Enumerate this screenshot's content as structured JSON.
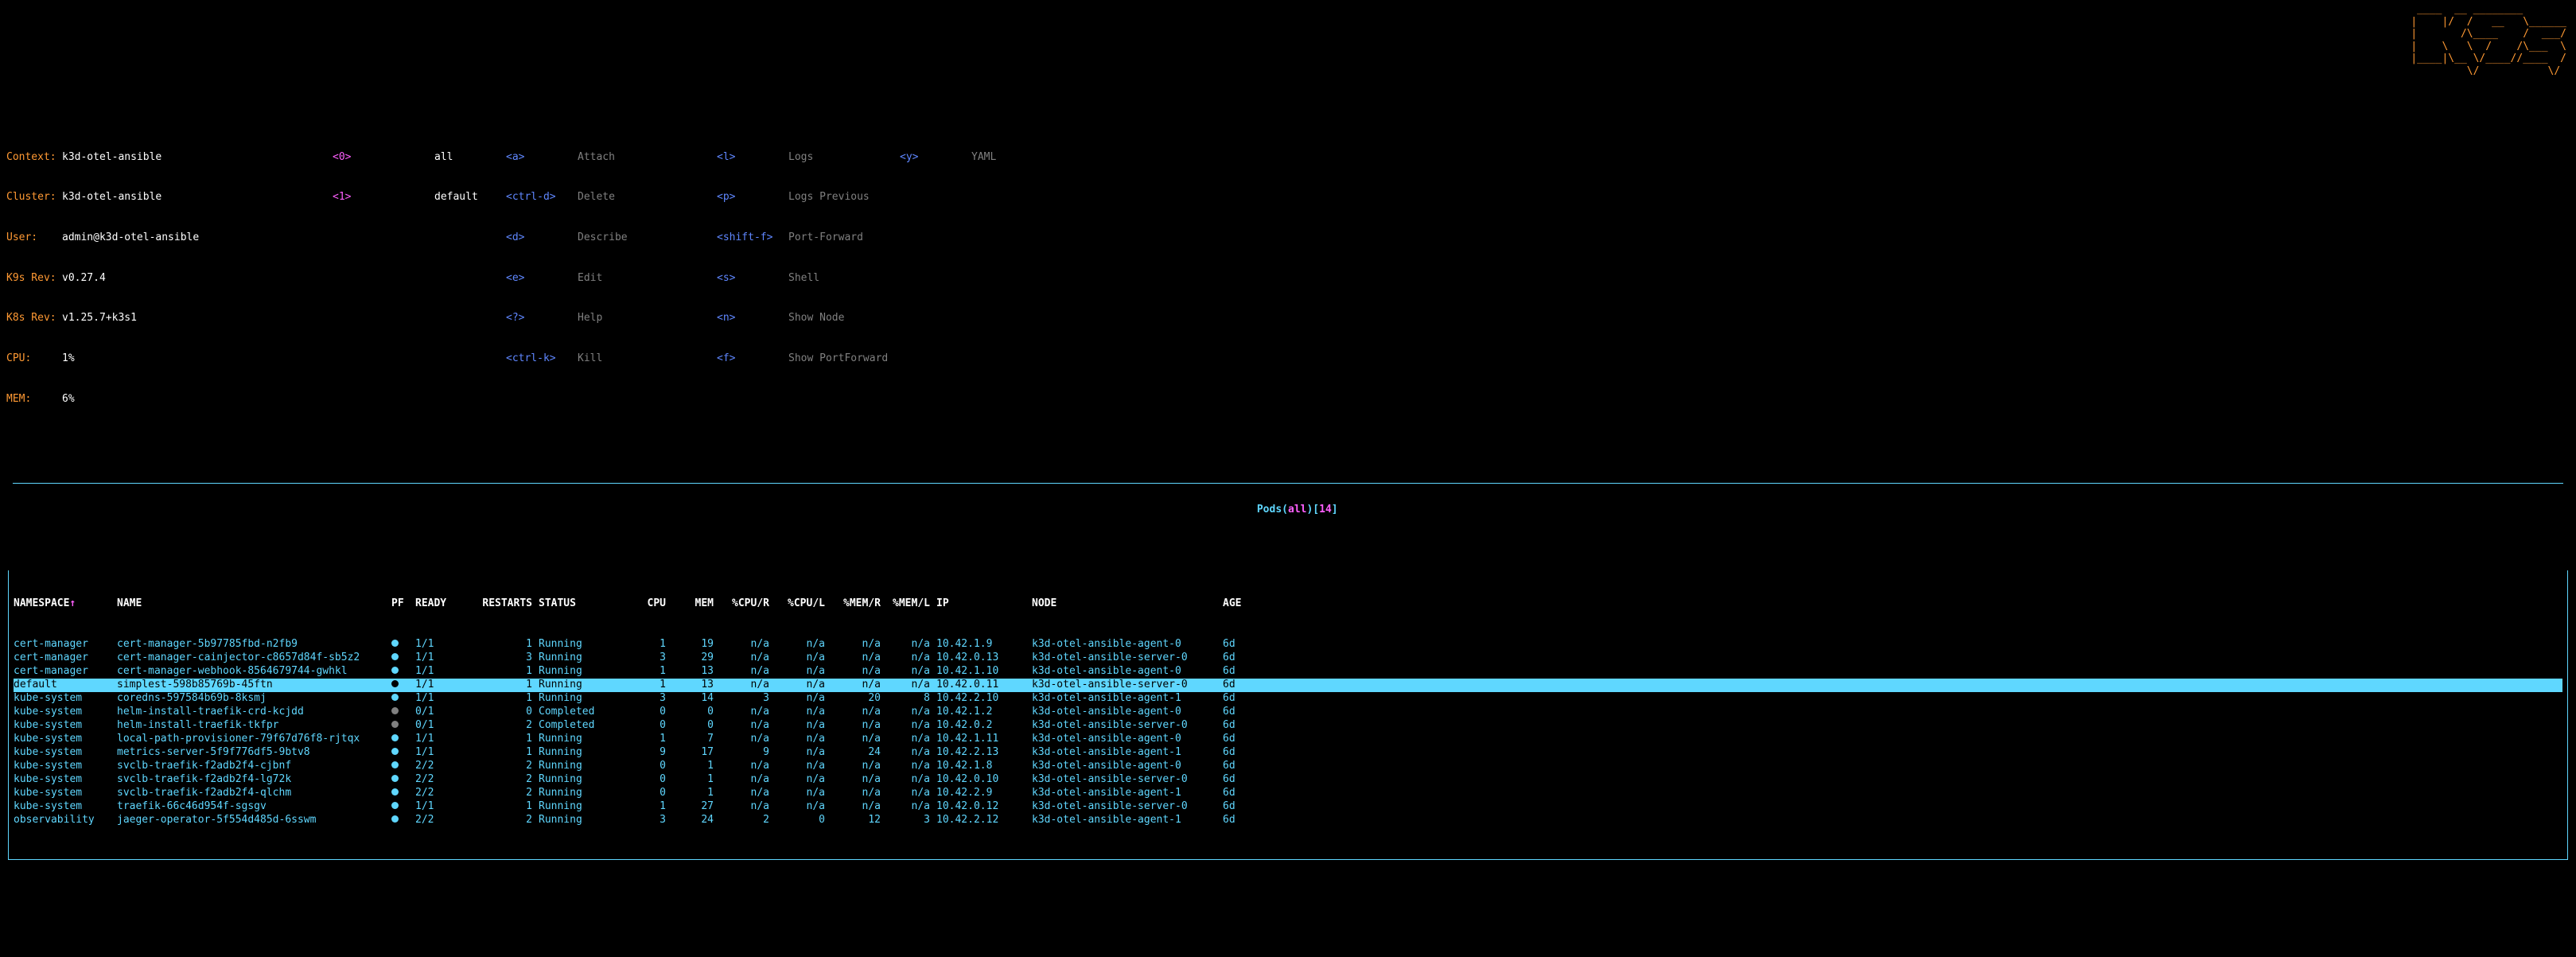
{
  "header": {
    "context_label": "Context:",
    "context_value": "k3d-otel-ansible",
    "cluster_label": "Cluster:",
    "cluster_value": "k3d-otel-ansible",
    "user_label": "User:",
    "user_value": "admin@k3d-otel-ansible",
    "k9srev_label": "K9s Rev:",
    "k9srev_value": "v0.27.4",
    "k8srev_label": "K8s Rev:",
    "k8srev_value": "v1.25.7+k3s1",
    "cpu_label": "CPU:",
    "cpu_value": "1%",
    "mem_label": "MEM:",
    "mem_value": "6%"
  },
  "shortcuts": {
    "r0": {
      "k1": "<0>",
      "v1": "all",
      "k2": "<a>",
      "v2": "Attach",
      "k3": "<l>",
      "v3": "Logs",
      "k4": "<y>",
      "v4": "YAML"
    },
    "r1": {
      "k1": "<1>",
      "v1": "default",
      "k2": "<ctrl-d>",
      "v2": "Delete",
      "k3": "<p>",
      "v3": "Logs Previous",
      "k4": "",
      "v4": ""
    },
    "r2": {
      "k1": "",
      "v1": "",
      "k2": "<d>",
      "v2": "Describe",
      "k3": "<shift-f>",
      "v3": "Port-Forward",
      "k4": "",
      "v4": ""
    },
    "r3": {
      "k1": "",
      "v1": "",
      "k2": "<e>",
      "v2": "Edit",
      "k3": "<s>",
      "v3": "Shell",
      "k4": "",
      "v4": ""
    },
    "r4": {
      "k1": "",
      "v1": "",
      "k2": "<?>",
      "v2": "Help",
      "k3": "<n>",
      "v3": "Show Node",
      "k4": "",
      "v4": ""
    },
    "r5": {
      "k1": "",
      "v1": "",
      "k2": "<ctrl-k>",
      "v2": "Kill",
      "k3": "<f>",
      "v3": "Show PortForward",
      "k4": "",
      "v4": ""
    }
  },
  "title": {
    "pods": "Pods(",
    "all": "all",
    ")[": ")[",
    "count": "14",
    "close": "]"
  },
  "columns": {
    "ns": "NAMESPACE",
    "name": "NAME",
    "pf": "PF",
    "ready": "READY",
    "rest": "RESTARTS",
    "stat": "STATUS",
    "cpu": "CPU",
    "mem": "MEM",
    "cpur": "%CPU/R",
    "cpul": "%CPU/L",
    "memr": "%MEM/R",
    "meml": "%MEM/L",
    "ip": "IP",
    "node": "NODE",
    "age": "AGE",
    "sort": "↑"
  },
  "rows": [
    {
      "ns": "cert-manager",
      "name": "cert-manager-5b97785fbd-n2fb9",
      "pf": "●",
      "pfc": "cyan",
      "ready": "1/1",
      "rest": "1",
      "stat": "Running",
      "cpu": "1",
      "mem": "19",
      "cpur": "n/a",
      "cpul": "n/a",
      "memr": "n/a",
      "meml": "n/a",
      "ip": "10.42.1.9",
      "node": "k3d-otel-ansible-agent-0",
      "age": "6d",
      "sel": false,
      "dim": false
    },
    {
      "ns": "cert-manager",
      "name": "cert-manager-cainjector-c8657d84f-sb5z2",
      "pf": "●",
      "pfc": "cyan",
      "ready": "1/1",
      "rest": "3",
      "stat": "Running",
      "cpu": "3",
      "mem": "29",
      "cpur": "n/a",
      "cpul": "n/a",
      "memr": "n/a",
      "meml": "n/a",
      "ip": "10.42.0.13",
      "node": "k3d-otel-ansible-server-0",
      "age": "6d",
      "sel": false,
      "dim": false
    },
    {
      "ns": "cert-manager",
      "name": "cert-manager-webhook-8564679744-gwhkl",
      "pf": "●",
      "pfc": "cyan",
      "ready": "1/1",
      "rest": "1",
      "stat": "Running",
      "cpu": "1",
      "mem": "13",
      "cpur": "n/a",
      "cpul": "n/a",
      "memr": "n/a",
      "meml": "n/a",
      "ip": "10.42.1.10",
      "node": "k3d-otel-ansible-agent-0",
      "age": "6d",
      "sel": false,
      "dim": false
    },
    {
      "ns": "default",
      "name": "simplest-598b85769b-45ftn",
      "pf": "●",
      "pfc": "black",
      "ready": "1/1",
      "rest": "1",
      "stat": "Running",
      "cpu": "1",
      "mem": "13",
      "cpur": "n/a",
      "cpul": "n/a",
      "memr": "n/a",
      "meml": "n/a",
      "ip": "10.42.0.11",
      "node": "k3d-otel-ansible-server-0",
      "age": "6d",
      "sel": true,
      "dim": false
    },
    {
      "ns": "kube-system",
      "name": "coredns-597584b69b-8ksmj",
      "pf": "●",
      "pfc": "cyan",
      "ready": "1/1",
      "rest": "1",
      "stat": "Running",
      "cpu": "3",
      "mem": "14",
      "cpur": "3",
      "cpul": "n/a",
      "memr": "20",
      "meml": "8",
      "ip": "10.42.2.10",
      "node": "k3d-otel-ansible-agent-1",
      "age": "6d",
      "sel": false,
      "dim": false
    },
    {
      "ns": "kube-system",
      "name": "helm-install-traefik-crd-kcjdd",
      "pf": "●",
      "pfc": "grey",
      "ready": "0/1",
      "rest": "0",
      "stat": "Completed",
      "cpu": "0",
      "mem": "0",
      "cpur": "n/a",
      "cpul": "n/a",
      "memr": "n/a",
      "meml": "n/a",
      "ip": "10.42.1.2",
      "node": "k3d-otel-ansible-agent-0",
      "age": "6d",
      "sel": false,
      "dim": true
    },
    {
      "ns": "kube-system",
      "name": "helm-install-traefik-tkfpr",
      "pf": "●",
      "pfc": "grey",
      "ready": "0/1",
      "rest": "2",
      "stat": "Completed",
      "cpu": "0",
      "mem": "0",
      "cpur": "n/a",
      "cpul": "n/a",
      "memr": "n/a",
      "meml": "n/a",
      "ip": "10.42.0.2",
      "node": "k3d-otel-ansible-server-0",
      "age": "6d",
      "sel": false,
      "dim": true
    },
    {
      "ns": "kube-system",
      "name": "local-path-provisioner-79f67d76f8-rjtqx",
      "pf": "●",
      "pfc": "cyan",
      "ready": "1/1",
      "rest": "1",
      "stat": "Running",
      "cpu": "1",
      "mem": "7",
      "cpur": "n/a",
      "cpul": "n/a",
      "memr": "n/a",
      "meml": "n/a",
      "ip": "10.42.1.11",
      "node": "k3d-otel-ansible-agent-0",
      "age": "6d",
      "sel": false,
      "dim": false
    },
    {
      "ns": "kube-system",
      "name": "metrics-server-5f9f776df5-9btv8",
      "pf": "●",
      "pfc": "cyan",
      "ready": "1/1",
      "rest": "1",
      "stat": "Running",
      "cpu": "9",
      "mem": "17",
      "cpur": "9",
      "cpul": "n/a",
      "memr": "24",
      "meml": "n/a",
      "ip": "10.42.2.13",
      "node": "k3d-otel-ansible-agent-1",
      "age": "6d",
      "sel": false,
      "dim": false
    },
    {
      "ns": "kube-system",
      "name": "svclb-traefik-f2adb2f4-cjbnf",
      "pf": "●",
      "pfc": "cyan",
      "ready": "2/2",
      "rest": "2",
      "stat": "Running",
      "cpu": "0",
      "mem": "1",
      "cpur": "n/a",
      "cpul": "n/a",
      "memr": "n/a",
      "meml": "n/a",
      "ip": "10.42.1.8",
      "node": "k3d-otel-ansible-agent-0",
      "age": "6d",
      "sel": false,
      "dim": false
    },
    {
      "ns": "kube-system",
      "name": "svclb-traefik-f2adb2f4-lg72k",
      "pf": "●",
      "pfc": "cyan",
      "ready": "2/2",
      "rest": "2",
      "stat": "Running",
      "cpu": "0",
      "mem": "1",
      "cpur": "n/a",
      "cpul": "n/a",
      "memr": "n/a",
      "meml": "n/a",
      "ip": "10.42.0.10",
      "node": "k3d-otel-ansible-server-0",
      "age": "6d",
      "sel": false,
      "dim": false
    },
    {
      "ns": "kube-system",
      "name": "svclb-traefik-f2adb2f4-qlchm",
      "pf": "●",
      "pfc": "cyan",
      "ready": "2/2",
      "rest": "2",
      "stat": "Running",
      "cpu": "0",
      "mem": "1",
      "cpur": "n/a",
      "cpul": "n/a",
      "memr": "n/a",
      "meml": "n/a",
      "ip": "10.42.2.9",
      "node": "k3d-otel-ansible-agent-1",
      "age": "6d",
      "sel": false,
      "dim": false
    },
    {
      "ns": "kube-system",
      "name": "traefik-66c46d954f-sgsgv",
      "pf": "●",
      "pfc": "cyan",
      "ready": "1/1",
      "rest": "1",
      "stat": "Running",
      "cpu": "1",
      "mem": "27",
      "cpur": "n/a",
      "cpul": "n/a",
      "memr": "n/a",
      "meml": "n/a",
      "ip": "10.42.0.12",
      "node": "k3d-otel-ansible-server-0",
      "age": "6d",
      "sel": false,
      "dim": false
    },
    {
      "ns": "observability",
      "name": "jaeger-operator-5f554d485d-6sswm",
      "pf": "●",
      "pfc": "cyan",
      "ready": "2/2",
      "rest": "2",
      "stat": "Running",
      "cpu": "3",
      "mem": "24",
      "cpur": "2",
      "cpul": "0",
      "memr": "12",
      "meml": "3",
      "ip": "10.42.2.12",
      "node": "k3d-otel-ansible-agent-1",
      "age": "6d",
      "sel": false,
      "dim": false
    }
  ],
  "logo": " ____  __ ________\n|    |/  /   __   \\______\n|       /\\____    /  ___/\n|    \\   \\  /    /\\___  \\\n|____|\\__ \\/____//____  /\n         \\/           \\/"
}
